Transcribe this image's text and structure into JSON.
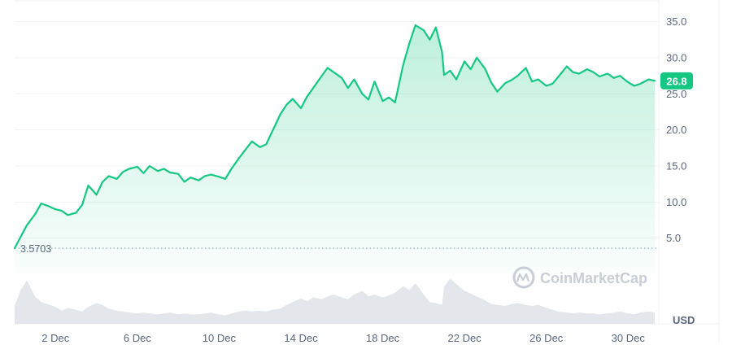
{
  "chart_data": {
    "type": "area",
    "price": {
      "start_label": "3.5703",
      "current_label": "26.8",
      "ylim": [
        0,
        38
      ],
      "yticks": [
        "35.0",
        "30.0",
        "25.0",
        "20.0",
        "15.0",
        "10.0",
        "5.0"
      ],
      "ytick_values": [
        35,
        30,
        25,
        20,
        15,
        10,
        5
      ],
      "xlim": [
        0,
        31.5
      ],
      "xticks": [
        "2 Dec",
        "6 Dec",
        "10 Dec",
        "14 Dec",
        "18 Dec",
        "22 Dec",
        "26 Dec",
        "30 Dec"
      ],
      "xtick_values": [
        2,
        6,
        10,
        14,
        18,
        22,
        26,
        30
      ],
      "series": [
        {
          "x": [
            0.0,
            0.3,
            0.6,
            1.0,
            1.3,
            1.6,
            2.0,
            2.3,
            2.6,
            3.0,
            3.3,
            3.6,
            4.0,
            4.3,
            4.6,
            5.0,
            5.3,
            5.6,
            6.0,
            6.3,
            6.6,
            7.0,
            7.3,
            7.6,
            8.0,
            8.3,
            8.6,
            9.0,
            9.3,
            9.6,
            10.0,
            10.3,
            10.6,
            11.0,
            11.3,
            11.6,
            12.0,
            12.3,
            12.6,
            13.0,
            13.3,
            13.6,
            14.0,
            14.3,
            14.6,
            15.0,
            15.3,
            15.6,
            16.0,
            16.3,
            16.6,
            17.0,
            17.3,
            17.6,
            18.0,
            18.3,
            18.6,
            19.0,
            19.3,
            19.6,
            20.0,
            20.3,
            20.6,
            20.9,
            21.0,
            21.3,
            21.6,
            22.0,
            22.3,
            22.6,
            23.0,
            23.3,
            23.6,
            24.0,
            24.3,
            24.6,
            25.0,
            25.3,
            25.6,
            26.0,
            26.3,
            26.6,
            27.0,
            27.3,
            27.6,
            28.0,
            28.3,
            28.6,
            29.0,
            29.3,
            29.6,
            30.0,
            30.3,
            30.6,
            31.0,
            31.3
          ],
          "y": [
            3.6,
            5.2,
            6.8,
            8.3,
            9.8,
            9.5,
            9.0,
            8.8,
            8.2,
            8.5,
            9.6,
            12.3,
            11.0,
            12.8,
            13.6,
            13.2,
            14.2,
            14.6,
            14.9,
            14.0,
            15.0,
            14.3,
            14.6,
            14.1,
            13.9,
            12.8,
            13.4,
            13.0,
            13.6,
            13.8,
            13.5,
            13.2,
            14.6,
            16.2,
            17.3,
            18.4,
            17.6,
            18.0,
            19.8,
            22.2,
            23.5,
            24.3,
            23.0,
            24.6,
            25.8,
            27.4,
            28.6,
            28.0,
            27.2,
            25.8,
            27.0,
            25.0,
            24.2,
            26.7,
            24.0,
            24.5,
            23.8,
            29.0,
            32.0,
            34.5,
            33.8,
            32.5,
            34.2,
            30.8,
            27.6,
            28.2,
            27.0,
            29.5,
            28.4,
            30.0,
            28.5,
            26.6,
            25.3,
            26.5,
            26.9,
            27.5,
            28.6,
            26.7,
            27.0,
            26.1,
            26.4,
            27.4,
            28.8,
            28.0,
            27.8,
            28.4,
            28.0,
            27.4,
            27.8,
            27.2,
            27.5,
            26.6,
            26.1,
            26.4,
            27.0,
            26.8
          ]
        }
      ]
    },
    "volume": {
      "x": [
        0.0,
        0.3,
        0.6,
        1.0,
        1.3,
        1.6,
        2.0,
        2.3,
        2.6,
        3.0,
        3.3,
        3.6,
        4.0,
        4.3,
        4.6,
        5.0,
        5.3,
        5.6,
        6.0,
        6.3,
        6.6,
        7.0,
        7.3,
        7.6,
        8.0,
        8.3,
        8.6,
        9.0,
        9.3,
        9.6,
        10.0,
        10.3,
        10.6,
        11.0,
        11.3,
        11.6,
        12.0,
        12.3,
        12.6,
        13.0,
        13.3,
        13.6,
        14.0,
        14.3,
        14.6,
        15.0,
        15.3,
        15.6,
        16.0,
        16.3,
        16.6,
        17.0,
        17.3,
        17.6,
        18.0,
        18.3,
        18.6,
        19.0,
        19.3,
        19.6,
        20.0,
        20.3,
        20.6,
        20.9,
        21.0,
        21.3,
        21.6,
        22.0,
        22.3,
        22.6,
        23.0,
        23.3,
        23.6,
        24.0,
        24.3,
        24.6,
        25.0,
        25.3,
        25.6,
        26.0,
        26.3,
        26.6,
        27.0,
        27.3,
        27.6,
        28.0,
        28.3,
        28.6,
        29.0,
        29.3,
        29.6,
        30.0,
        30.3,
        30.6,
        31.0,
        31.3
      ],
      "y": [
        0.38,
        0.72,
        0.92,
        0.58,
        0.46,
        0.42,
        0.36,
        0.28,
        0.34,
        0.3,
        0.26,
        0.36,
        0.44,
        0.4,
        0.32,
        0.28,
        0.26,
        0.24,
        0.22,
        0.24,
        0.22,
        0.2,
        0.22,
        0.24,
        0.2,
        0.22,
        0.2,
        0.2,
        0.22,
        0.24,
        0.2,
        0.18,
        0.22,
        0.26,
        0.28,
        0.26,
        0.28,
        0.26,
        0.3,
        0.32,
        0.4,
        0.46,
        0.54,
        0.48,
        0.56,
        0.52,
        0.58,
        0.62,
        0.56,
        0.52,
        0.62,
        0.7,
        0.58,
        0.62,
        0.56,
        0.6,
        0.66,
        0.8,
        0.72,
        0.86,
        0.62,
        0.46,
        0.44,
        0.4,
        0.78,
        0.96,
        0.84,
        0.7,
        0.64,
        0.58,
        0.5,
        0.42,
        0.4,
        0.38,
        0.42,
        0.44,
        0.4,
        0.38,
        0.4,
        0.34,
        0.3,
        0.26,
        0.24,
        0.22,
        0.24,
        0.22,
        0.22,
        0.2,
        0.22,
        0.24,
        0.26,
        0.22,
        0.2,
        0.24,
        0.26,
        0.24
      ]
    },
    "currency_label": "USD",
    "watermark": "CoinMarketCap",
    "colors": {
      "line": "#16c784",
      "fill_top": "#16c784",
      "volume": "#d9dde3",
      "grid": "#eff2f5",
      "text": "#58667e",
      "baseline": "#a6b0c3"
    },
    "grid": true,
    "legend": "none"
  }
}
